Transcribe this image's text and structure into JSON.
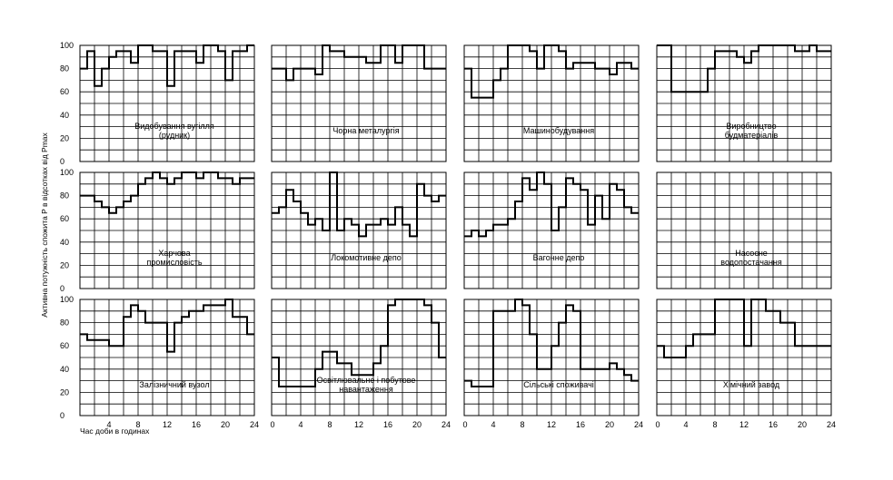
{
  "figure": {
    "ylabel": "Активна потужність спожита P в відсотках від Pmax",
    "xlabel": "Час доби в годинах",
    "x_ticks": [
      "4",
      "8",
      "12",
      "16",
      "20",
      "24"
    ],
    "y_ticks": [
      "0",
      "20",
      "40",
      "60",
      "80",
      "100"
    ],
    "first_x_tick": "0"
  },
  "chart_data": [
    {
      "type": "line",
      "label_lines": [
        "Видобування вугілля",
        "(рудник)"
      ],
      "xlim": [
        0,
        24
      ],
      "ylim": [
        0,
        100
      ],
      "x": [
        0,
        1,
        2,
        3,
        4,
        5,
        6,
        7,
        8,
        9,
        10,
        11,
        12,
        13,
        14,
        15,
        16,
        17,
        18,
        19,
        20,
        21,
        22,
        23,
        24
      ],
      "values": [
        80,
        95,
        65,
        80,
        90,
        95,
        95,
        85,
        100,
        100,
        95,
        95,
        65,
        95,
        95,
        95,
        85,
        100,
        100,
        95,
        70,
        95,
        95,
        100,
        80
      ]
    },
    {
      "type": "line",
      "label_lines": [
        "Чорна металургія"
      ],
      "xlim": [
        0,
        24
      ],
      "ylim": [
        0,
        100
      ],
      "x": [
        0,
        1,
        2,
        3,
        4,
        5,
        6,
        7,
        8,
        9,
        10,
        11,
        12,
        13,
        14,
        15,
        16,
        17,
        18,
        19,
        20,
        21,
        22,
        23,
        24
      ],
      "values": [
        80,
        80,
        70,
        80,
        80,
        80,
        75,
        100,
        95,
        95,
        90,
        90,
        90,
        85,
        85,
        100,
        100,
        85,
        100,
        100,
        100,
        80,
        80,
        80,
        80
      ]
    },
    {
      "type": "line",
      "label_lines": [
        "Машинобудування"
      ],
      "xlim": [
        0,
        24
      ],
      "ylim": [
        0,
        100
      ],
      "x": [
        0,
        1,
        2,
        3,
        4,
        5,
        6,
        7,
        8,
        9,
        10,
        11,
        12,
        13,
        14,
        15,
        16,
        17,
        18,
        19,
        20,
        21,
        22,
        23,
        24
      ],
      "values": [
        80,
        55,
        55,
        55,
        70,
        80,
        100,
        100,
        100,
        95,
        80,
        100,
        100,
        95,
        80,
        85,
        85,
        85,
        80,
        80,
        75,
        85,
        85,
        80,
        80
      ]
    },
    {
      "type": "line",
      "label_lines": [
        "Виробництво",
        "будматеріалів"
      ],
      "xlim": [
        0,
        24
      ],
      "ylim": [
        0,
        100
      ],
      "x": [
        0,
        1,
        2,
        3,
        4,
        5,
        6,
        7,
        8,
        9,
        10,
        11,
        12,
        13,
        14,
        15,
        16,
        17,
        18,
        19,
        20,
        21,
        22,
        23,
        24
      ],
      "values": [
        100,
        100,
        60,
        60,
        60,
        60,
        60,
        80,
        95,
        95,
        95,
        90,
        85,
        95,
        100,
        100,
        100,
        100,
        100,
        95,
        95,
        100,
        95,
        95,
        95
      ]
    },
    {
      "type": "line",
      "label_lines": [
        "Харчова",
        "промисловість"
      ],
      "xlim": [
        0,
        24
      ],
      "ylim": [
        0,
        100
      ],
      "x": [
        0,
        1,
        2,
        3,
        4,
        5,
        6,
        7,
        8,
        9,
        10,
        11,
        12,
        13,
        14,
        15,
        16,
        17,
        18,
        19,
        20,
        21,
        22,
        23,
        24
      ],
      "values": [
        80,
        80,
        75,
        70,
        65,
        70,
        75,
        80,
        90,
        95,
        100,
        95,
        90,
        95,
        100,
        100,
        95,
        100,
        100,
        95,
        95,
        90,
        95,
        95,
        80
      ]
    },
    {
      "type": "line",
      "label_lines": [
        "Локомотивне депо"
      ],
      "xlim": [
        0,
        24
      ],
      "ylim": [
        0,
        100
      ],
      "x": [
        0,
        1,
        2,
        3,
        4,
        5,
        6,
        7,
        8,
        9,
        10,
        11,
        12,
        13,
        14,
        15,
        16,
        17,
        18,
        19,
        20,
        21,
        22,
        23,
        24
      ],
      "values": [
        65,
        70,
        85,
        75,
        65,
        55,
        60,
        50,
        100,
        50,
        60,
        55,
        45,
        55,
        55,
        60,
        55,
        70,
        55,
        45,
        90,
        80,
        75,
        80,
        65
      ]
    },
    {
      "type": "line",
      "label_lines": [
        "Вагонне депо"
      ],
      "xlim": [
        0,
        24
      ],
      "ylim": [
        0,
        100
      ],
      "x": [
        0,
        1,
        2,
        3,
        4,
        5,
        6,
        7,
        8,
        9,
        10,
        11,
        12,
        13,
        14,
        15,
        16,
        17,
        18,
        19,
        20,
        21,
        22,
        23,
        24
      ],
      "values": [
        45,
        50,
        45,
        50,
        55,
        55,
        60,
        75,
        95,
        85,
        100,
        90,
        50,
        70,
        95,
        90,
        85,
        55,
        80,
        60,
        90,
        85,
        70,
        65,
        60
      ]
    },
    {
      "type": "line",
      "label_lines": [
        "Насосне",
        "водопостачання"
      ],
      "xlim": [
        0,
        24
      ],
      "ylim": [
        0,
        100
      ],
      "x": [],
      "values": []
    },
    {
      "type": "line",
      "label_lines": [
        "Залізничний вузол"
      ],
      "xlim": [
        0,
        24
      ],
      "ylim": [
        0,
        100
      ],
      "x": [
        0,
        1,
        2,
        3,
        4,
        5,
        6,
        7,
        8,
        9,
        10,
        11,
        12,
        13,
        14,
        15,
        16,
        17,
        18,
        19,
        20,
        21,
        22,
        23,
        24
      ],
      "values": [
        70,
        65,
        65,
        65,
        60,
        60,
        85,
        95,
        90,
        80,
        80,
        80,
        55,
        80,
        85,
        90,
        90,
        95,
        95,
        95,
        100,
        85,
        85,
        70,
        70
      ]
    },
    {
      "type": "line",
      "label_lines": [
        "Освітлювальне і побутове",
        "навантаження"
      ],
      "xlim": [
        0,
        24
      ],
      "ylim": [
        0,
        100
      ],
      "x": [
        0,
        1,
        2,
        3,
        4,
        5,
        6,
        7,
        8,
        9,
        10,
        11,
        12,
        13,
        14,
        15,
        16,
        17,
        18,
        19,
        20,
        21,
        22,
        23,
        24
      ],
      "values": [
        50,
        25,
        25,
        25,
        25,
        25,
        40,
        55,
        55,
        45,
        45,
        35,
        35,
        35,
        45,
        60,
        95,
        100,
        100,
        100,
        100,
        95,
        80,
        50,
        50
      ]
    },
    {
      "type": "line",
      "label_lines": [
        "Сільські споживачі"
      ],
      "xlim": [
        0,
        24
      ],
      "ylim": [
        0,
        100
      ],
      "x": [
        0,
        1,
        2,
        3,
        4,
        5,
        6,
        7,
        8,
        9,
        10,
        11,
        12,
        13,
        14,
        15,
        16,
        17,
        18,
        19,
        20,
        21,
        22,
        23,
        24
      ],
      "values": [
        30,
        25,
        25,
        25,
        90,
        90,
        90,
        100,
        95,
        70,
        40,
        40,
        60,
        80,
        95,
        90,
        40,
        40,
        40,
        40,
        45,
        40,
        35,
        30,
        30
      ]
    },
    {
      "type": "line",
      "label_lines": [
        "Хімічний завод"
      ],
      "xlim": [
        0,
        24
      ],
      "ylim": [
        0,
        100
      ],
      "x": [
        0,
        1,
        2,
        3,
        4,
        5,
        6,
        7,
        8,
        9,
        10,
        11,
        12,
        13,
        14,
        15,
        16,
        17,
        18,
        19,
        20,
        21,
        22,
        23,
        24
      ],
      "values": [
        60,
        50,
        50,
        50,
        60,
        70,
        70,
        70,
        100,
        100,
        100,
        100,
        60,
        100,
        100,
        90,
        90,
        80,
        80,
        60,
        60,
        60,
        60,
        60,
        60
      ]
    }
  ]
}
